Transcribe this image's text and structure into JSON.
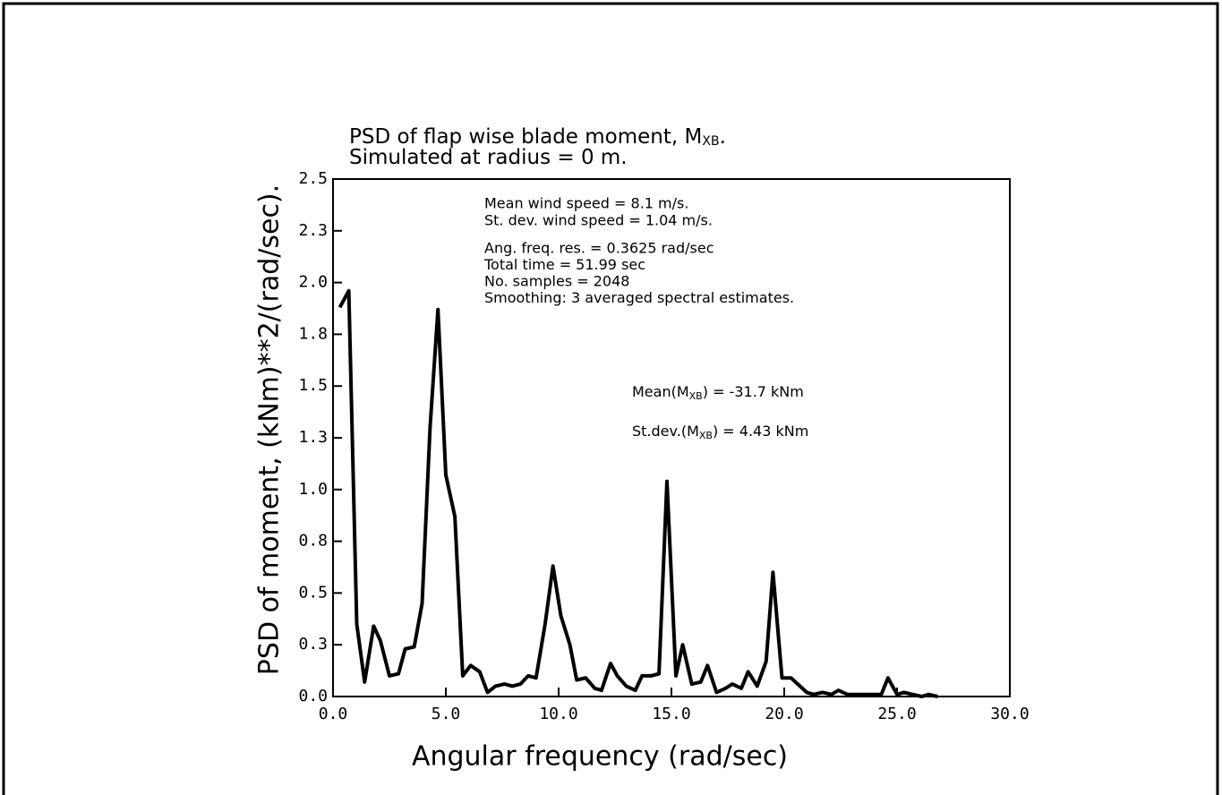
{
  "chart_data": {
    "type": "line",
    "title": {
      "lines": [
        {
          "text": "PSD of flap wise blade moment, M",
          "sub": "XB",
          "end": "."
        },
        {
          "text": "Simulated at radius = 0 m."
        }
      ]
    },
    "x_label": "Angular frequency (rad/sec)",
    "y_label": "PSD of moment, (kNm)**2/(rad/sec).",
    "annotations": [
      "Mean wind speed = 8.1 m/s.",
      "St. dev. wind speed = 1.04 m/s.",
      "Ang. freq. res. = 0.3625 rad/sec",
      "Total time = 51.99 sec",
      "No. samples = 2048",
      "Smoothing: 3 averaged spectral estimates."
    ],
    "stats": [
      {
        "text": "Mean(M",
        "sub": "XB",
        "end": ") = -31.7 kNm"
      },
      {
        "text": "St.dev.(M",
        "sub": "XB",
        "end": ") = 4.43 kNm"
      }
    ],
    "color": "#000000",
    "xlim": [
      0,
      30
    ],
    "ylim": [
      0,
      2.5
    ],
    "xticks": [
      {
        "value": 0,
        "label": "0.0"
      },
      {
        "value": 5,
        "label": "5.0"
      },
      {
        "value": 10,
        "label": "10.0"
      },
      {
        "value": 15,
        "label": "15.0"
      },
      {
        "value": 20,
        "label": "20.0"
      },
      {
        "value": 25,
        "label": "25.0"
      },
      {
        "value": 30,
        "label": "30.0"
      }
    ],
    "yticks": [
      {
        "value": 0,
        "label": "0.0"
      },
      {
        "value": 0.25,
        "label": "0.3"
      },
      0.5,
      {
        "value": 0.75,
        "label": "0.8"
      },
      {
        "value": 1,
        "label": "1.0"
      },
      {
        "value": 1.25,
        "label": "1.3"
      },
      1.5,
      {
        "value": 1.75,
        "label": "1.8"
      },
      {
        "value": 2,
        "label": "2.0"
      },
      {
        "value": 2.25,
        "label": "2.3"
      },
      2.5
    ],
    "x": [
      0.3,
      0.7,
      1.05,
      1.4,
      1.8,
      2.1,
      2.5,
      2.9,
      3.2,
      3.6,
      3.95,
      4.3,
      4.65,
      5.0,
      5.4,
      5.75,
      6.1,
      6.5,
      6.85,
      7.2,
      7.6,
      7.95,
      8.3,
      8.65,
      9.0,
      9.4,
      9.75,
      10.1,
      10.5,
      10.8,
      11.2,
      11.6,
      11.9,
      12.3,
      12.6,
      13.0,
      13.4,
      13.7,
      14.1,
      14.45,
      14.8,
      15.2,
      15.5,
      15.9,
      16.3,
      16.6,
      17.0,
      17.4,
      17.7,
      18.1,
      18.4,
      18.8,
      19.2,
      19.5,
      19.9,
      20.3,
      20.6,
      21.0,
      21.3,
      21.7,
      22.1,
      22.4,
      22.8,
      23.2,
      23.5,
      23.9,
      24.3,
      24.6,
      25.0,
      25.3,
      25.7,
      26.1,
      26.4,
      26.8
    ],
    "values": [
      1.88,
      1.96,
      0.35,
      0.07,
      0.34,
      0.27,
      0.1,
      0.11,
      0.23,
      0.24,
      0.45,
      1.3,
      1.87,
      1.07,
      0.87,
      0.1,
      0.15,
      0.12,
      0.02,
      0.05,
      0.06,
      0.05,
      0.06,
      0.1,
      0.09,
      0.35,
      0.63,
      0.39,
      0.25,
      0.08,
      0.09,
      0.04,
      0.03,
      0.16,
      0.1,
      0.05,
      0.03,
      0.1,
      0.1,
      0.11,
      1.04,
      0.1,
      0.25,
      0.06,
      0.07,
      0.15,
      0.02,
      0.04,
      0.06,
      0.04,
      0.12,
      0.05,
      0.17,
      0.6,
      0.09,
      0.09,
      0.06,
      0.02,
      0.01,
      0.02,
      0.01,
      0.03,
      0.01,
      0.01,
      0.01,
      0.01,
      0.01,
      0.09,
      0.01,
      0.02,
      0.01,
      0.0,
      0.01,
      0.0
    ]
  }
}
